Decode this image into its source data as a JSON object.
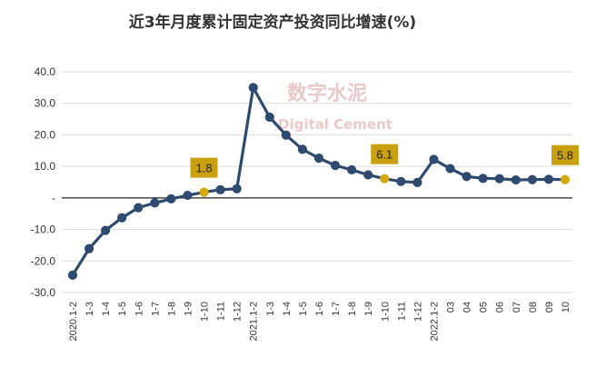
{
  "chart_data": {
    "type": "line",
    "title": "近3年月度累计固定资产投资同比增速(%)",
    "watermark": {
      "cn": "数字水泥",
      "en": "Digital Cement"
    },
    "categories": [
      "2020.1-2",
      "1-3",
      "1-4",
      "1-5",
      "1-6",
      "1-7",
      "1-8",
      "1-9",
      "1-10",
      "1-11",
      "1-12",
      "2021.1-2",
      "1-3",
      "1-4",
      "1-5",
      "1-6",
      "1-7",
      "1-8",
      "1-9",
      "1-10",
      "1-11",
      "1-12",
      "2022.1-2",
      "03",
      "04",
      "05",
      "06",
      "07",
      "08",
      "09",
      "10"
    ],
    "series": [
      {
        "values": [
          -24.5,
          -16.1,
          -10.3,
          -6.3,
          -3.1,
          -1.6,
          -0.3,
          0.8,
          1.8,
          2.6,
          2.9,
          35.0,
          25.6,
          19.9,
          15.4,
          12.6,
          10.3,
          8.9,
          7.3,
          6.1,
          5.2,
          4.9,
          12.2,
          9.3,
          6.8,
          6.2,
          6.1,
          5.7,
          5.8,
          5.9,
          5.8
        ],
        "color": "#2e4a6e"
      }
    ],
    "highlights": [
      {
        "index": 8,
        "label": "1.8"
      },
      {
        "index": 19,
        "label": "6.1"
      },
      {
        "index": 30,
        "label": "5.8"
      }
    ],
    "highlight_color": "#d4a90c",
    "label_bg": "#c9a00f",
    "yticks": [
      {
        "value": 40,
        "label": "40.0"
      },
      {
        "value": 30,
        "label": "30.0"
      },
      {
        "value": 20,
        "label": "20.0"
      },
      {
        "value": 10,
        "label": "10.0"
      },
      {
        "value": 0,
        "label": "-"
      },
      {
        "value": -10,
        "label": "-10.0"
      },
      {
        "value": -20,
        "label": "-20.0"
      },
      {
        "value": -30,
        "label": "-30.0"
      }
    ],
    "ylim": [
      -30,
      40
    ],
    "grid": true
  }
}
